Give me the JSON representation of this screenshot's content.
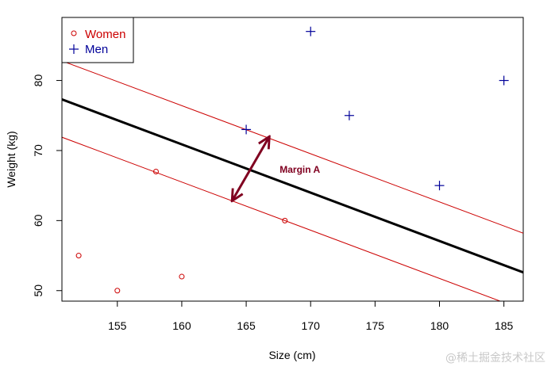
{
  "chart_data": {
    "type": "scatter",
    "title": "",
    "xlabel": "Size (cm)",
    "ylabel": "Weight (kg)",
    "xlim": [
      150.7,
      186.5
    ],
    "ylim": [
      48.5,
      89
    ],
    "xticks": [
      155,
      160,
      165,
      170,
      175,
      180,
      185
    ],
    "yticks": [
      50,
      60,
      70,
      80
    ],
    "legend": {
      "position": "top-left"
    },
    "grid": false,
    "series": [
      {
        "name": "Women",
        "marker": "circle",
        "color": "#cc0000",
        "points": [
          {
            "x": 152,
            "y": 55
          },
          {
            "x": 155,
            "y": 50
          },
          {
            "x": 158,
            "y": 67
          },
          {
            "x": 160,
            "y": 52
          },
          {
            "x": 168,
            "y": 60
          }
        ]
      },
      {
        "name": "Men",
        "marker": "plus",
        "color": "#000099",
        "points": [
          {
            "x": 165,
            "y": 73
          },
          {
            "x": 170,
            "y": 87
          },
          {
            "x": 173,
            "y": 75
          },
          {
            "x": 180,
            "y": 65
          },
          {
            "x": 185,
            "y": 80
          }
        ]
      }
    ],
    "lines": [
      {
        "name": "decision-boundary",
        "color": "#000000",
        "x1": 150.7,
        "y1": 77.3,
        "x2": 186.5,
        "y2": 52.6
      },
      {
        "name": "margin-upper",
        "color": "#cc0000",
        "x1": 150.7,
        "y1": 82.8,
        "x2": 186.5,
        "y2": 58.2
      },
      {
        "name": "margin-lower",
        "color": "#cc0000",
        "x1": 150.7,
        "y1": 71.9,
        "x2": 185.0,
        "y2": 48.3
      }
    ],
    "annotations": [
      {
        "text": "Margin A",
        "color": "#800020",
        "arrow_from": {
          "x": 163.9,
          "y": 62.8
        },
        "arrow_to": {
          "x": 166.8,
          "y": 72.0
        },
        "label_at": {
          "x": 167.6,
          "y": 67.3
        }
      }
    ]
  },
  "watermark": "@稀土掘金技术社区"
}
